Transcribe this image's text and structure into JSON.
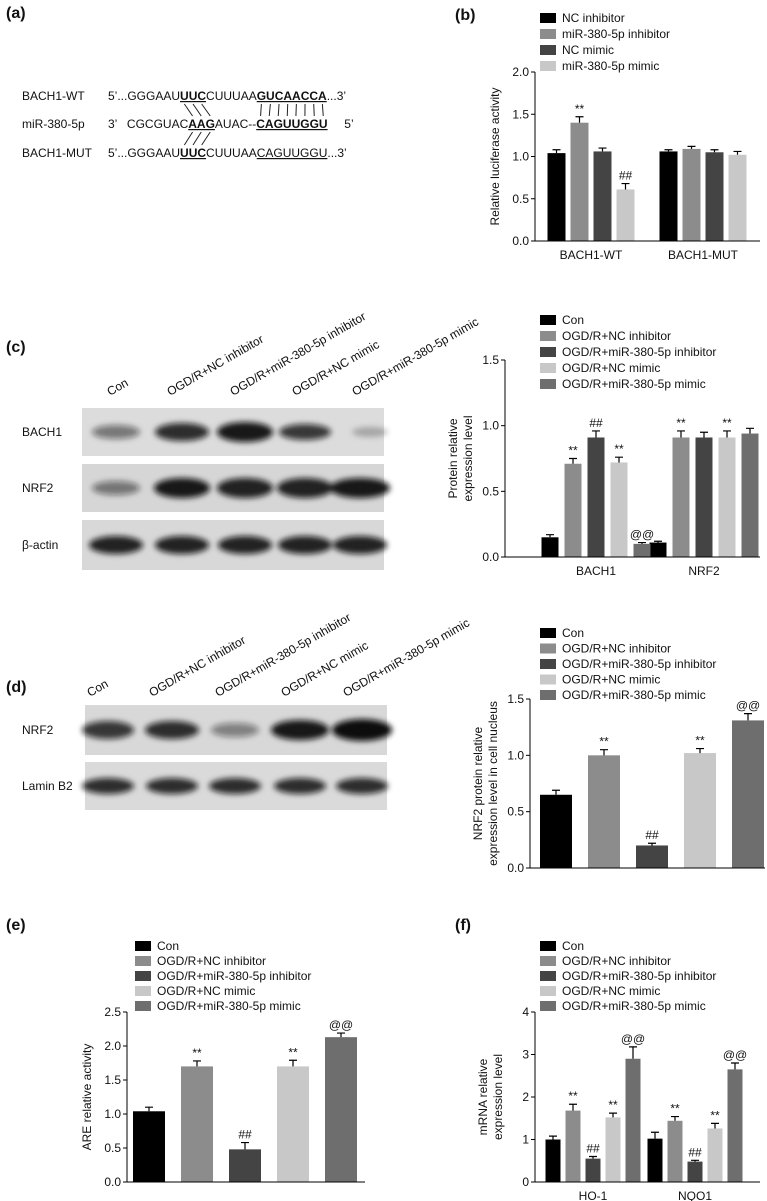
{
  "panel_labels": [
    "(a)",
    "(b)",
    "(c)",
    "(d)",
    "(e)",
    "(f)"
  ],
  "sequence_alignment": {
    "rows": [
      {
        "label": "BACH1-WT",
        "segments": [
          {
            "text": "5’...GGGAAU"
          },
          {
            "text": "UUC",
            "bold": true,
            "underline": true
          },
          {
            "text": "CUUUAA"
          },
          {
            "text": "GUCAACCA",
            "bold": true,
            "underline": true
          },
          {
            "text": "...3’"
          }
        ]
      },
      {
        "label": "miR-380-5p",
        "segments": [
          {
            "text": "3’   CGCGUAC"
          },
          {
            "text": "AAG",
            "bold": true,
            "underline": true
          },
          {
            "text": "AUAC--"
          },
          {
            "text": "CAGUUGGU",
            "bold": true,
            "underline": true
          },
          {
            "text": "     5’"
          }
        ]
      },
      {
        "label": "BACH1-MUT",
        "segments": [
          {
            "text": "5’...GGGAAU"
          },
          {
            "text": "UUC",
            "bold": true,
            "underline": true
          },
          {
            "text": "CUUUAA"
          },
          {
            "text": "CAGUUGGU",
            "underline": true
          },
          {
            "text": "...3’"
          }
        ]
      }
    ]
  },
  "blots": [
    {
      "lanes": [
        "Con",
        "OGD/R+NC inhibitor",
        "OGD/R+miR-380-5p inhibitor",
        "OGD/R+NC mimic",
        "OGD/R+miR-380-5p mimic"
      ],
      "rows": [
        "BACH1",
        "NRF2",
        "β-actin"
      ]
    },
    {
      "lanes": [
        "Con",
        "OGD/R+NC inhibitor",
        "OGD/R+miR-380-5p inhibitor",
        "OGD/R+NC mimic",
        "OGD/R+miR-380-5p mimic"
      ],
      "rows": [
        "NRF2",
        "Lamin B2"
      ]
    }
  ],
  "chart_data": [
    {
      "type": "bar",
      "ylabel": [
        "Relative luciferase activity"
      ],
      "categories": [
        "BACH1-WT",
        "BACH1-MUT"
      ],
      "ylim": [
        0,
        2
      ],
      "yticks": [
        {
          "value": 0,
          "label": "0.0"
        },
        0.5,
        {
          "value": 1,
          "label": "1.0"
        },
        1.5,
        {
          "value": 2,
          "label": "2.0"
        }
      ],
      "series": [
        {
          "name": "NC inhibitor",
          "color": "#000000",
          "values": [
            1.04,
            1.06
          ],
          "errors": [
            0.04,
            0.02
          ],
          "annotations": [
            null,
            null
          ]
        },
        {
          "name": "miR-380-5p inhibitor",
          "color": "#8c8c8c",
          "values": [
            1.4,
            1.09
          ],
          "errors": [
            0.07,
            0.03
          ],
          "annotations": [
            "**",
            null
          ]
        },
        {
          "name": "NC mimic",
          "color": "#444444",
          "values": [
            1.06,
            1.05
          ],
          "errors": [
            0.04,
            0.03
          ],
          "annotations": [
            null,
            null
          ]
        },
        {
          "name": "miR-380-5p mimic",
          "color": "#c8c8c8",
          "values": [
            0.61,
            1.02
          ],
          "errors": [
            0.07,
            0.04
          ],
          "annotations": [
            "##",
            null
          ]
        }
      ]
    },
    {
      "type": "bar",
      "ylabel": [
        "Protein relative",
        "expression level"
      ],
      "categories": [
        "BACH1",
        "NRF2"
      ],
      "ylim": [
        0,
        1.5
      ],
      "yticks": [
        {
          "value": 0,
          "label": "0.0"
        },
        0.5,
        {
          "value": 1,
          "label": "1.0"
        },
        1.5
      ],
      "series": [
        {
          "name": "Con",
          "color": "#000000",
          "values": [
            0.15,
            0.11
          ],
          "errors": [
            0.02,
            0.01
          ],
          "annotations": [
            null,
            null
          ]
        },
        {
          "name": "OGD/R+NC inhibitor",
          "color": "#8c8c8c",
          "values": [
            0.71,
            0.91
          ],
          "errors": [
            0.04,
            0.05
          ],
          "annotations": [
            "**",
            "**"
          ]
        },
        {
          "name": "OGD/R+miR-380-5p inhibitor",
          "color": "#444444",
          "values": [
            0.91,
            0.91
          ],
          "errors": [
            0.05,
            0.04
          ],
          "annotations": [
            "##",
            null
          ]
        },
        {
          "name": "OGD/R+NC mimic",
          "color": "#c8c8c8",
          "values": [
            0.72,
            0.91
          ],
          "errors": [
            0.04,
            0.05
          ],
          "annotations": [
            "**",
            "**"
          ]
        },
        {
          "name": "OGD/R+miR-380-5p mimic",
          "color": "#6e6e6e",
          "values": [
            0.1,
            0.94
          ],
          "errors": [
            0.01,
            0.04
          ],
          "annotations": [
            "@@",
            null
          ]
        }
      ]
    },
    {
      "type": "bar",
      "ylabel": [
        "NRF2 protein relative",
        "expression level in cell nucleus"
      ],
      "categories": [
        null
      ],
      "ylim": [
        0,
        1.5
      ],
      "yticks": [
        {
          "value": 0,
          "label": "0.0"
        },
        0.5,
        {
          "value": 1,
          "label": "1.0"
        },
        1.5
      ],
      "series": [
        {
          "name": "Con",
          "color": "#000000",
          "values": [
            0.65
          ],
          "errors": [
            0.04
          ],
          "annotations": [
            null
          ]
        },
        {
          "name": "OGD/R+NC inhibitor",
          "color": "#8c8c8c",
          "values": [
            1.0
          ],
          "errors": [
            0.05
          ],
          "annotations": [
            "**"
          ]
        },
        {
          "name": "OGD/R+miR-380-5p inhibitor",
          "color": "#444444",
          "values": [
            0.2
          ],
          "errors": [
            0.02
          ],
          "annotations": [
            "##"
          ]
        },
        {
          "name": "OGD/R+NC mimic",
          "color": "#c8c8c8",
          "values": [
            1.02
          ],
          "errors": [
            0.04
          ],
          "annotations": [
            "**"
          ]
        },
        {
          "name": "OGD/R+miR-380-5p mimic",
          "color": "#6e6e6e",
          "values": [
            1.31
          ],
          "errors": [
            0.06
          ],
          "annotations": [
            "@@"
          ]
        }
      ]
    },
    {
      "type": "bar",
      "ylabel": [
        "ARE relative  activity"
      ],
      "categories": [
        null
      ],
      "ylim": [
        0,
        2.5
      ],
      "yticks": [
        {
          "value": 0,
          "label": "0.0"
        },
        0.5,
        {
          "value": 1,
          "label": "1.0"
        },
        1.5,
        {
          "value": 2,
          "label": "2.0"
        },
        2.5
      ],
      "series": [
        {
          "name": "Con",
          "color": "#000000",
          "values": [
            1.04
          ],
          "errors": [
            0.06
          ],
          "annotations": [
            null
          ]
        },
        {
          "name": "OGD/R+NC inhibitor",
          "color": "#8c8c8c",
          "values": [
            1.7
          ],
          "errors": [
            0.08
          ],
          "annotations": [
            "**"
          ]
        },
        {
          "name": "OGD/R+miR-380-5p inhibitor",
          "color": "#444444",
          "values": [
            0.48
          ],
          "errors": [
            0.1
          ],
          "annotations": [
            "##"
          ]
        },
        {
          "name": "OGD/R+NC mimic",
          "color": "#c8c8c8",
          "values": [
            1.7
          ],
          "errors": [
            0.09
          ],
          "annotations": [
            "**"
          ]
        },
        {
          "name": "OGD/R+miR-380-5p mimic",
          "color": "#6e6e6e",
          "values": [
            2.13
          ],
          "errors": [
            0.06
          ],
          "annotations": [
            "@@"
          ]
        }
      ]
    },
    {
      "type": "bar",
      "ylabel": [
        "mRNA relative",
        "expression level"
      ],
      "categories": [
        "HO-1",
        "NQO1"
      ],
      "ylim": [
        0,
        4
      ],
      "yticks": [
        0,
        1,
        2,
        3,
        4
      ],
      "series": [
        {
          "name": "Con",
          "color": "#000000",
          "values": [
            1.0,
            1.02
          ],
          "errors": [
            0.08,
            0.15
          ],
          "annotations": [
            null,
            null
          ]
        },
        {
          "name": "OGD/R+NC inhibitor",
          "color": "#8c8c8c",
          "values": [
            1.68,
            1.44
          ],
          "errors": [
            0.15,
            0.1
          ],
          "annotations": [
            "**",
            "**"
          ]
        },
        {
          "name": "OGD/R+miR-380-5p inhibitor",
          "color": "#444444",
          "values": [
            0.55,
            0.48
          ],
          "errors": [
            0.05,
            0.03
          ],
          "annotations": [
            "##",
            "##"
          ]
        },
        {
          "name": "OGD/R+NC mimic",
          "color": "#c8c8c8",
          "values": [
            1.52,
            1.26
          ],
          "errors": [
            0.1,
            0.12
          ],
          "annotations": [
            "**",
            "**"
          ]
        },
        {
          "name": "OGD/R+miR-380-5p mimic",
          "color": "#6e6e6e",
          "values": [
            2.9,
            2.65
          ],
          "errors": [
            0.28,
            0.15
          ],
          "annotations": [
            "@@",
            "@@"
          ]
        }
      ]
    }
  ]
}
